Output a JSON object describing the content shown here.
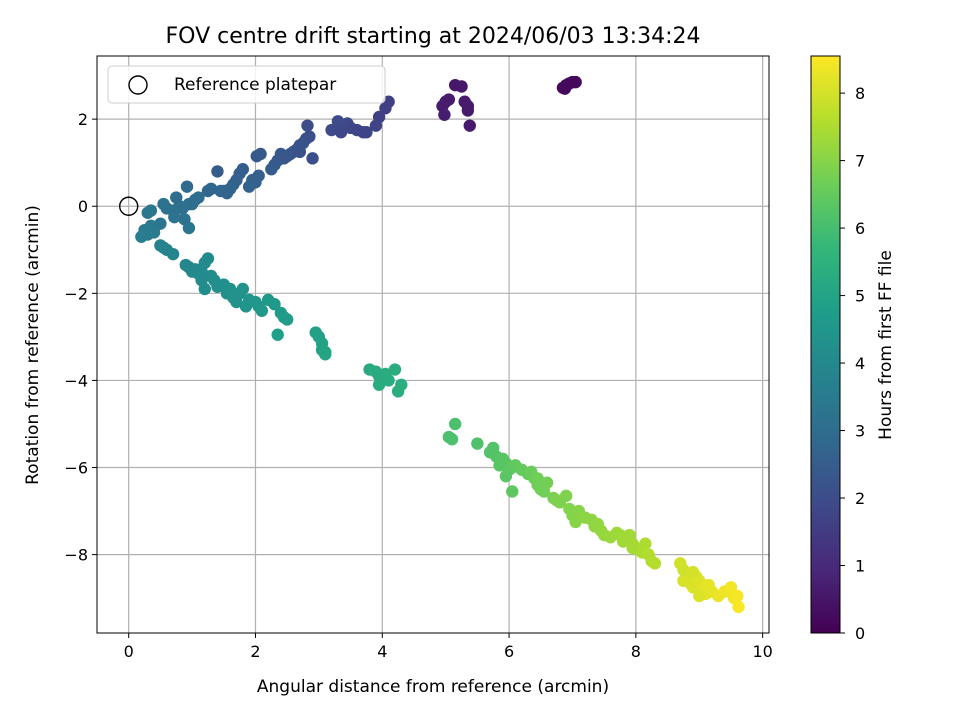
{
  "chart_data": {
    "type": "scatter",
    "title": "FOV centre drift starting at 2024/06/03 13:34:24",
    "xlabel": "Angular distance from reference (arcmin)",
    "ylabel": "Rotation from reference (arcmin)",
    "xlim": [
      -0.5,
      10.1
    ],
    "ylim": [
      -9.8,
      3.45
    ],
    "xticks": [
      0,
      2,
      4,
      6,
      8,
      10
    ],
    "yticks": [
      -8,
      -6,
      -4,
      -2,
      0,
      2
    ],
    "grid": true,
    "legend": {
      "position": "upper-left",
      "entries": [
        "Reference platepar"
      ]
    },
    "reference_point": {
      "label": "Reference platepar",
      "x": 0,
      "y": 0
    },
    "colorbar": {
      "label": "Hours from first FF file",
      "range": [
        0,
        8.55
      ],
      "ticks": [
        0,
        1,
        2,
        3,
        4,
        5,
        6,
        7,
        8
      ],
      "colormap": "viridis"
    },
    "series": [
      {
        "description": "points colored by hours from first FF file",
        "x": [
          6.85,
          6.9,
          6.95,
          7.0,
          7.05,
          6.88,
          5.15,
          5.25,
          5.3,
          5.35,
          5.38,
          5.35,
          4.95,
          5.0,
          5.05,
          4.98,
          3.95,
          4.05,
          4.1,
          3.9,
          3.75,
          3.6,
          3.45,
          3.3,
          3.2,
          3.35,
          3.5,
          3.7,
          2.82,
          2.85,
          2.8,
          2.75,
          2.7,
          2.65,
          2.6,
          2.55,
          2.5,
          2.45,
          2.4,
          2.35,
          2.3,
          2.25,
          2.7,
          2.9,
          2.05,
          2.0,
          1.95,
          1.9,
          1.8,
          1.75,
          1.7,
          1.65,
          1.6,
          1.55,
          1.5,
          1.45,
          1.4,
          1.3,
          1.25,
          2.08,
          2.02,
          1.1,
          1.05,
          1.0,
          0.95,
          0.92,
          0.85,
          0.8,
          0.75,
          0.7,
          0.6,
          0.55,
          0.5,
          0.4,
          0.35,
          0.3,
          0.95,
          0.88,
          0.72,
          0.4,
          0.35,
          0.3,
          0.25,
          0.2,
          0.5,
          0.55,
          0.6,
          0.7,
          0.9,
          0.95,
          1.0,
          1.05,
          1.1,
          1.15,
          1.2,
          1.25,
          1.3,
          1.35,
          1.4,
          1.5,
          1.55,
          1.6,
          1.65,
          1.7,
          1.75,
          1.8,
          1.85,
          1.9,
          2.0,
          2.05,
          2.1,
          2.2,
          2.3,
          2.4,
          2.45,
          2.5,
          1.15,
          1.2,
          2.35,
          2.95,
          3.0,
          3.05,
          3.1,
          3.05,
          3.1,
          3.8,
          3.9,
          3.95,
          4.0,
          4.05,
          4.1,
          4.2,
          4.25,
          4.3,
          3.95,
          5.1,
          5.15,
          5.05,
          5.5,
          5.7,
          5.75,
          5.8,
          5.85,
          5.9,
          5.95,
          6.0,
          6.05,
          6.1,
          6.2,
          6.3,
          6.35,
          6.4,
          6.45,
          6.5,
          6.55,
          6.6,
          6.7,
          6.75,
          6.8,
          6.9,
          6.95,
          7.0,
          7.05,
          7.1,
          7.2,
          7.3,
          7.35,
          7.4,
          7.45,
          6.05,
          5.95,
          6.45,
          7.5,
          7.6,
          7.7,
          7.75,
          7.8,
          7.85,
          7.9,
          7.95,
          8.0,
          8.05,
          8.1,
          8.15,
          8.2,
          8.25,
          8.3,
          7.95,
          8.75,
          8.8,
          8.85,
          8.9,
          8.95,
          9.0,
          9.05,
          9.1,
          9.15,
          9.2,
          9.3,
          9.4,
          9.5,
          9.55,
          9.6,
          9.62,
          8.7,
          8.75,
          8.9,
          9.0
        ],
        "y": [
          2.72,
          2.78,
          2.82,
          2.85,
          2.85,
          2.7,
          2.78,
          2.75,
          2.4,
          2.3,
          1.85,
          2.2,
          2.3,
          2.4,
          2.45,
          2.1,
          2.05,
          2.25,
          2.4,
          1.85,
          1.7,
          1.75,
          1.9,
          1.95,
          1.75,
          1.7,
          1.8,
          1.7,
          1.85,
          1.6,
          1.55,
          1.45,
          1.4,
          1.3,
          1.25,
          1.2,
          1.15,
          1.1,
          1.2,
          1.05,
          0.95,
          0.85,
          1.25,
          1.1,
          0.7,
          0.55,
          0.6,
          0.45,
          0.85,
          0.75,
          0.6,
          0.5,
          0.4,
          0.3,
          0.35,
          0.35,
          0.8,
          0.4,
          0.35,
          1.2,
          1.15,
          0.2,
          0.15,
          0.05,
          0.05,
          0.45,
          -0.05,
          0.0,
          0.2,
          -0.1,
          -0.05,
          0.05,
          -0.4,
          -0.5,
          -0.1,
          -0.15,
          -0.5,
          -0.3,
          -0.25,
          -0.6,
          -0.45,
          -0.65,
          -0.55,
          -0.7,
          -0.9,
          -0.95,
          -1.0,
          -1.1,
          -1.35,
          -1.4,
          -1.5,
          -1.45,
          -1.55,
          -1.5,
          -1.3,
          -1.2,
          -1.6,
          -1.7,
          -1.85,
          -1.8,
          -2.0,
          -1.9,
          -2.1,
          -2.2,
          -2.0,
          -1.9,
          -2.3,
          -2.15,
          -2.2,
          -2.3,
          -2.4,
          -2.15,
          -2.25,
          -2.45,
          -2.55,
          -2.6,
          -1.7,
          -1.9,
          -2.95,
          -2.9,
          -3.0,
          -3.3,
          -3.4,
          -3.15,
          -3.35,
          -3.75,
          -3.8,
          -4.1,
          -3.95,
          -3.85,
          -4.0,
          -3.75,
          -4.25,
          -4.1,
          -3.9,
          -5.35,
          -5.0,
          -5.3,
          -5.45,
          -5.65,
          -5.55,
          -5.75,
          -5.95,
          -5.8,
          -5.9,
          -6.05,
          -6.0,
          -5.95,
          -6.05,
          -6.15,
          -6.1,
          -6.25,
          -6.4,
          -6.5,
          -6.55,
          -6.35,
          -6.7,
          -6.75,
          -6.8,
          -6.65,
          -6.95,
          -7.1,
          -7.25,
          -7.0,
          -7.15,
          -7.2,
          -7.35,
          -7.3,
          -7.45,
          -6.55,
          -6.2,
          -6.25,
          -7.55,
          -7.6,
          -7.5,
          -7.55,
          -7.7,
          -7.6,
          -7.55,
          -7.75,
          -7.85,
          -7.9,
          -7.95,
          -7.75,
          -8.0,
          -8.15,
          -8.2,
          -7.85,
          -8.6,
          -8.55,
          -8.65,
          -8.75,
          -8.5,
          -8.6,
          -8.8,
          -8.9,
          -8.7,
          -8.85,
          -8.95,
          -8.85,
          -8.75,
          -9.0,
          -8.95,
          -9.2,
          -8.2,
          -8.35,
          -8.4,
          -8.95
        ],
        "hours": [
          0.2,
          0.2,
          0.22,
          0.22,
          0.2,
          0.2,
          0.55,
          0.55,
          0.6,
          0.62,
          0.6,
          0.6,
          0.65,
          0.65,
          0.65,
          0.7,
          1.6,
          1.6,
          1.6,
          1.7,
          1.8,
          1.8,
          1.9,
          1.9,
          1.9,
          1.85,
          1.8,
          1.75,
          2.0,
          2.05,
          2.1,
          2.15,
          2.15,
          2.2,
          2.2,
          2.25,
          2.3,
          2.3,
          2.3,
          2.35,
          2.4,
          2.45,
          2.15,
          2.1,
          2.55,
          2.6,
          2.6,
          2.65,
          2.5,
          2.55,
          2.6,
          2.65,
          2.7,
          2.7,
          2.75,
          2.75,
          2.5,
          2.8,
          2.8,
          2.4,
          2.4,
          3.0,
          3.0,
          3.05,
          3.05,
          2.9,
          3.1,
          3.1,
          3.0,
          3.15,
          3.2,
          3.2,
          3.3,
          3.4,
          3.3,
          3.35,
          3.3,
          3.2,
          3.2,
          3.5,
          3.45,
          3.5,
          3.55,
          3.6,
          3.7,
          3.75,
          3.8,
          3.85,
          3.95,
          3.95,
          4.0,
          4.0,
          4.05,
          4.05,
          4.05,
          4.1,
          4.1,
          4.15,
          4.2,
          4.25,
          4.25,
          4.3,
          4.35,
          4.35,
          4.35,
          4.4,
          4.45,
          4.45,
          4.5,
          4.5,
          4.55,
          4.6,
          4.6,
          4.65,
          4.7,
          4.7,
          4.1,
          4.15,
          4.85,
          4.9,
          4.9,
          4.95,
          5.0,
          4.95,
          5.0,
          5.2,
          5.25,
          5.3,
          5.3,
          5.3,
          5.3,
          5.35,
          5.35,
          5.4,
          5.25,
          6.1,
          6.1,
          6.1,
          6.15,
          6.2,
          6.2,
          6.25,
          6.3,
          6.3,
          6.3,
          6.35,
          6.4,
          6.45,
          6.5,
          6.55,
          6.6,
          6.6,
          6.65,
          6.7,
          6.7,
          6.75,
          6.8,
          6.85,
          6.85,
          6.9,
          6.95,
          6.95,
          7.0,
          7.0,
          7.05,
          7.1,
          7.1,
          7.15,
          7.15,
          6.4,
          6.35,
          6.7,
          7.2,
          7.25,
          7.3,
          7.3,
          7.35,
          7.35,
          7.35,
          7.4,
          7.45,
          7.45,
          7.5,
          7.5,
          7.55,
          7.55,
          7.6,
          7.4,
          8.0,
          8.05,
          8.05,
          8.1,
          8.1,
          8.15,
          8.2,
          8.2,
          8.25,
          8.25,
          8.3,
          8.35,
          8.4,
          8.4,
          8.45,
          8.5,
          7.95,
          7.95,
          8.0,
          8.1
        ]
      }
    ]
  }
}
